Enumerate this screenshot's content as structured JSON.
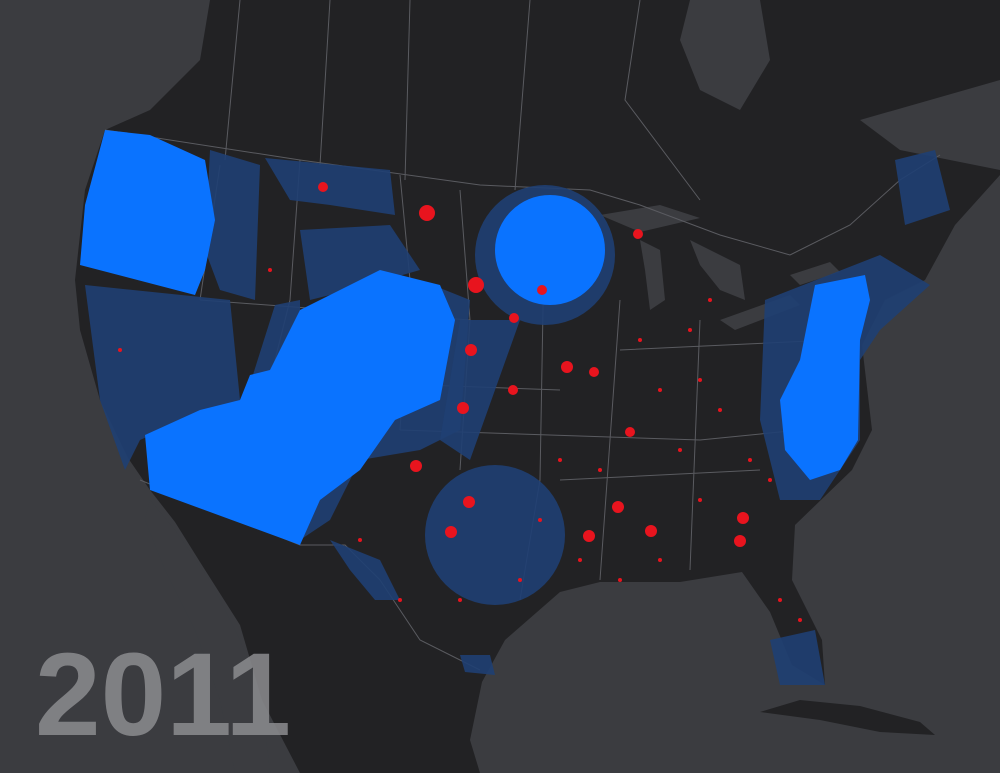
{
  "year_label": "2011"
}
